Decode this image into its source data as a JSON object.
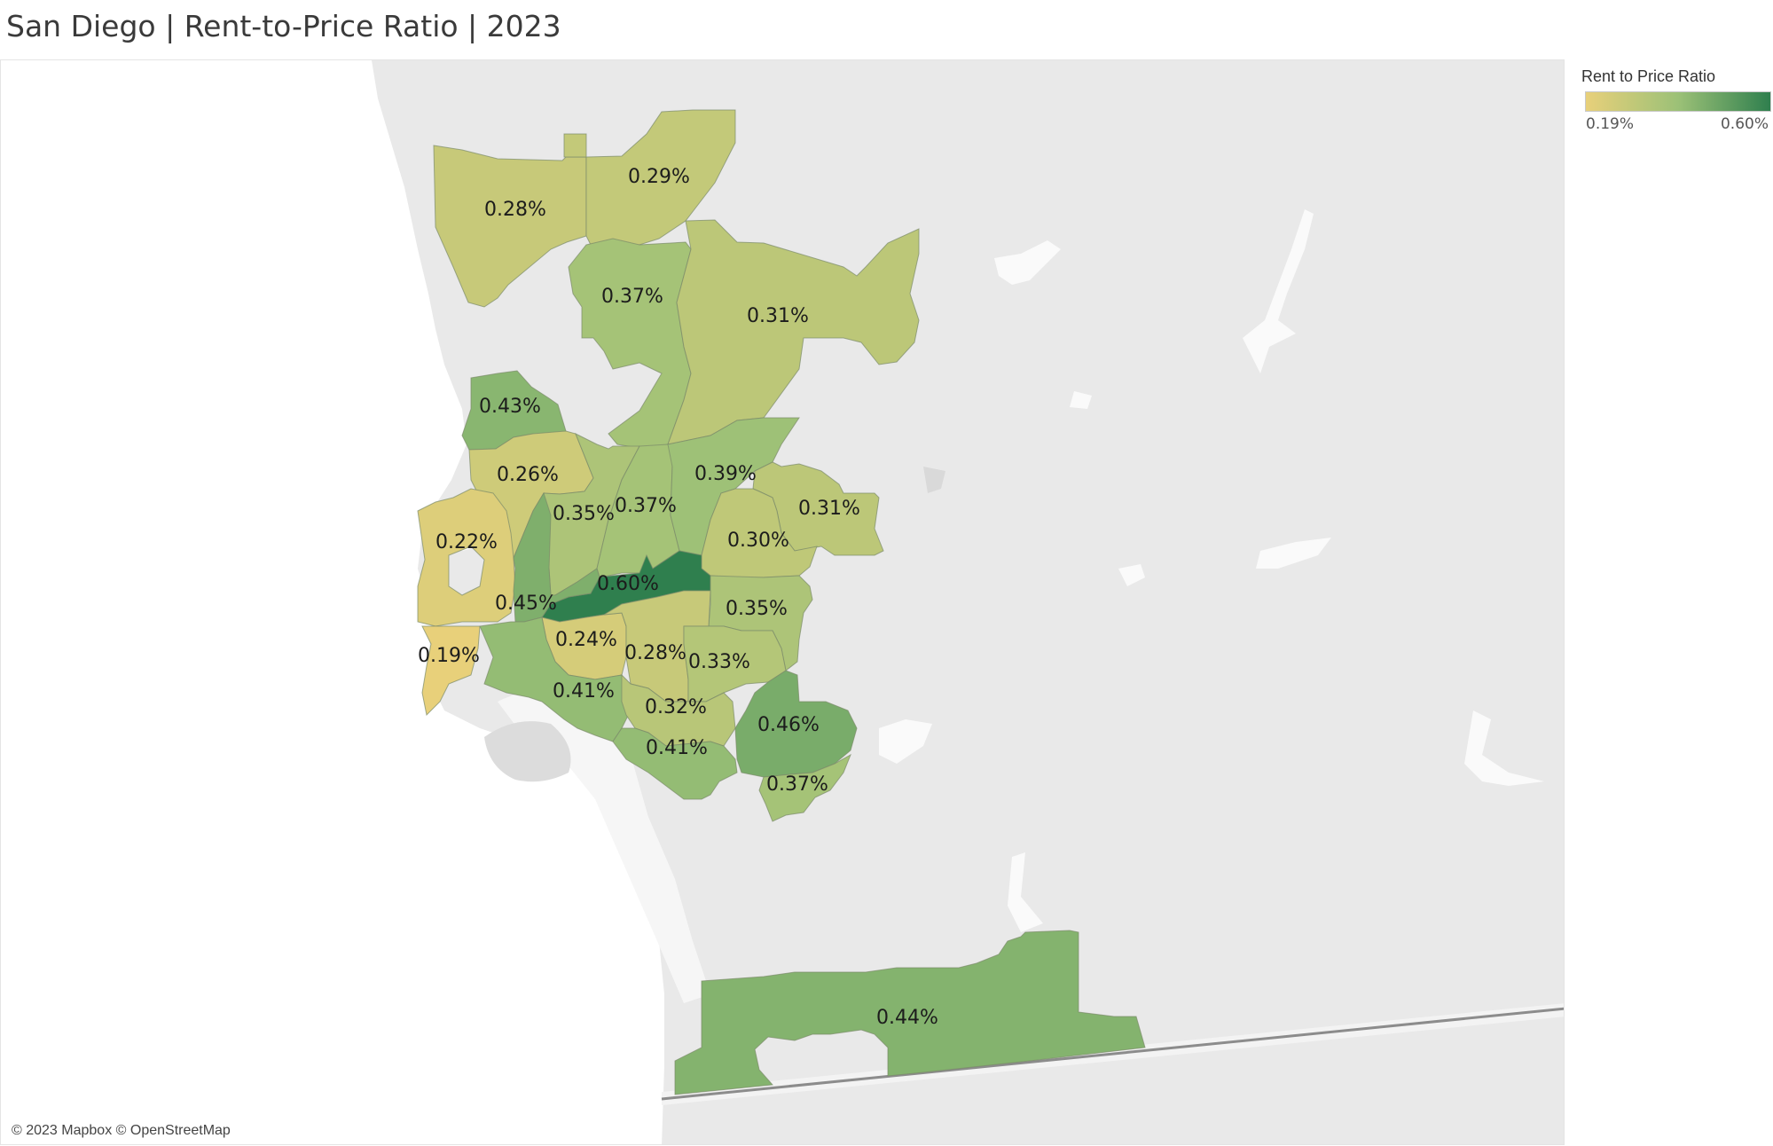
{
  "title": "San Diego | Rent-to-Price Ratio | 2023",
  "attribution": "© 2023 Mapbox © OpenStreetMap",
  "legend": {
    "title": "Rent to Price Ratio",
    "min_label": "0.19%",
    "max_label": "0.60%",
    "min_value": 0.19,
    "max_value": 0.6,
    "color_low": "#e8d07a",
    "color_mid": "#9cc177",
    "color_high": "#2f7f4e"
  },
  "colors": {
    "land": "#e9e9e9",
    "water": "#ffffff",
    "region_border": "#7a8a6a",
    "border_line": "#8c8c8c"
  },
  "regions": [
    {
      "name": "r-028-north",
      "value": 0.28,
      "label": "0.28%"
    },
    {
      "name": "r-029",
      "value": 0.29,
      "label": "0.29%"
    },
    {
      "name": "r-037-north",
      "value": 0.37,
      "label": "0.37%"
    },
    {
      "name": "r-031-northeast",
      "value": 0.31,
      "label": "0.31%"
    },
    {
      "name": "r-043",
      "value": 0.43,
      "label": "0.43%"
    },
    {
      "name": "r-026",
      "value": 0.26,
      "label": "0.26%"
    },
    {
      "name": "r-035-west",
      "value": 0.35,
      "label": "0.35%"
    },
    {
      "name": "r-037-center",
      "value": 0.37,
      "label": "0.37%"
    },
    {
      "name": "r-039",
      "value": 0.39,
      "label": "0.39%"
    },
    {
      "name": "r-031-east",
      "value": 0.31,
      "label": "0.31%"
    },
    {
      "name": "r-030",
      "value": 0.3,
      "label": "0.30%"
    },
    {
      "name": "r-022",
      "value": 0.22,
      "label": "0.22%"
    },
    {
      "name": "r-060",
      "value": 0.6,
      "label": "0.60%"
    },
    {
      "name": "r-045",
      "value": 0.45,
      "label": "0.45%"
    },
    {
      "name": "r-035-east",
      "value": 0.35,
      "label": "0.35%"
    },
    {
      "name": "r-024",
      "value": 0.24,
      "label": "0.24%"
    },
    {
      "name": "r-028-south",
      "value": 0.28,
      "label": "0.28%"
    },
    {
      "name": "r-033",
      "value": 0.33,
      "label": "0.33%"
    },
    {
      "name": "r-019",
      "value": 0.19,
      "label": "0.19%"
    },
    {
      "name": "r-041-west",
      "value": 0.41,
      "label": "0.41%"
    },
    {
      "name": "r-032",
      "value": 0.32,
      "label": "0.32%"
    },
    {
      "name": "r-046",
      "value": 0.46,
      "label": "0.46%"
    },
    {
      "name": "r-041-south",
      "value": 0.41,
      "label": "0.41%"
    },
    {
      "name": "r-037-south",
      "value": 0.37,
      "label": "0.37%"
    },
    {
      "name": "r-044",
      "value": 0.44,
      "label": "0.44%"
    }
  ]
}
